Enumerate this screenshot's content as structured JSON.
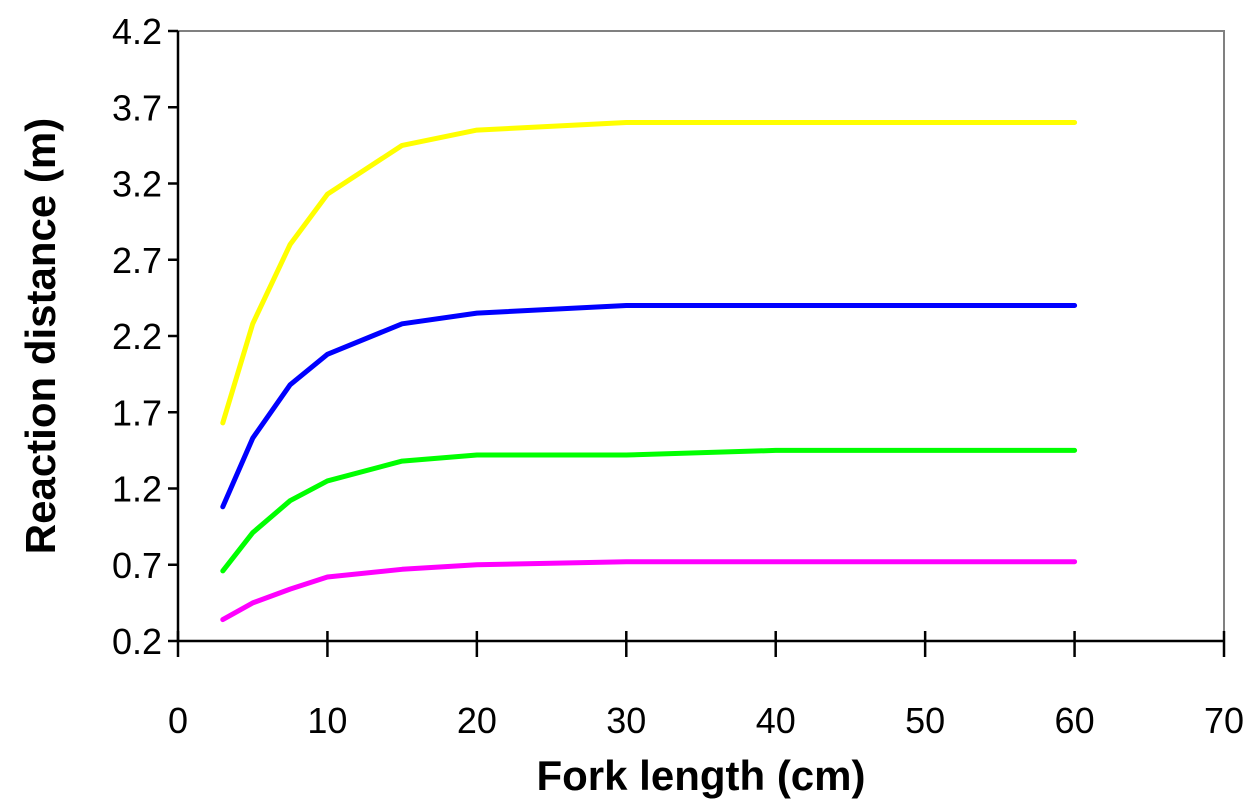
{
  "chart_data": {
    "type": "line",
    "title": "",
    "xlabel": "Fork length (cm)",
    "ylabel": "Reaction distance (m)",
    "xlim": [
      0,
      70
    ],
    "ylim": [
      0.2,
      4.2
    ],
    "xticks": [
      0,
      10,
      20,
      30,
      40,
      50,
      60,
      70
    ],
    "yticks": [
      0.2,
      0.7,
      1.2,
      1.7,
      2.2,
      2.7,
      3.2,
      3.7,
      4.2
    ],
    "xtick_labels": [
      "0",
      "10",
      "20",
      "30",
      "40",
      "50",
      "60",
      "70"
    ],
    "ytick_labels": [
      "0.2",
      "0.7",
      "1.2",
      "1.7",
      "2.2",
      "2.7",
      "3.2",
      "3.7",
      "4.2"
    ],
    "grid": false,
    "legend": false,
    "x": [
      3,
      5,
      7.5,
      10,
      15,
      20,
      30,
      40,
      60
    ],
    "series": [
      {
        "color": "#ffff00",
        "values": [
          1.63,
          2.28,
          2.8,
          3.13,
          3.45,
          3.55,
          3.6,
          3.6,
          3.6
        ]
      },
      {
        "color": "#0000ff",
        "values": [
          1.08,
          1.53,
          1.88,
          2.08,
          2.28,
          2.35,
          2.4,
          2.4,
          2.4
        ]
      },
      {
        "color": "#00ff00",
        "values": [
          0.66,
          0.91,
          1.12,
          1.25,
          1.38,
          1.42,
          1.42,
          1.45,
          1.45
        ]
      },
      {
        "color": "#ff00ff",
        "values": [
          0.34,
          0.45,
          0.54,
          0.62,
          0.67,
          0.7,
          0.72,
          0.72,
          0.72
        ]
      }
    ]
  }
}
